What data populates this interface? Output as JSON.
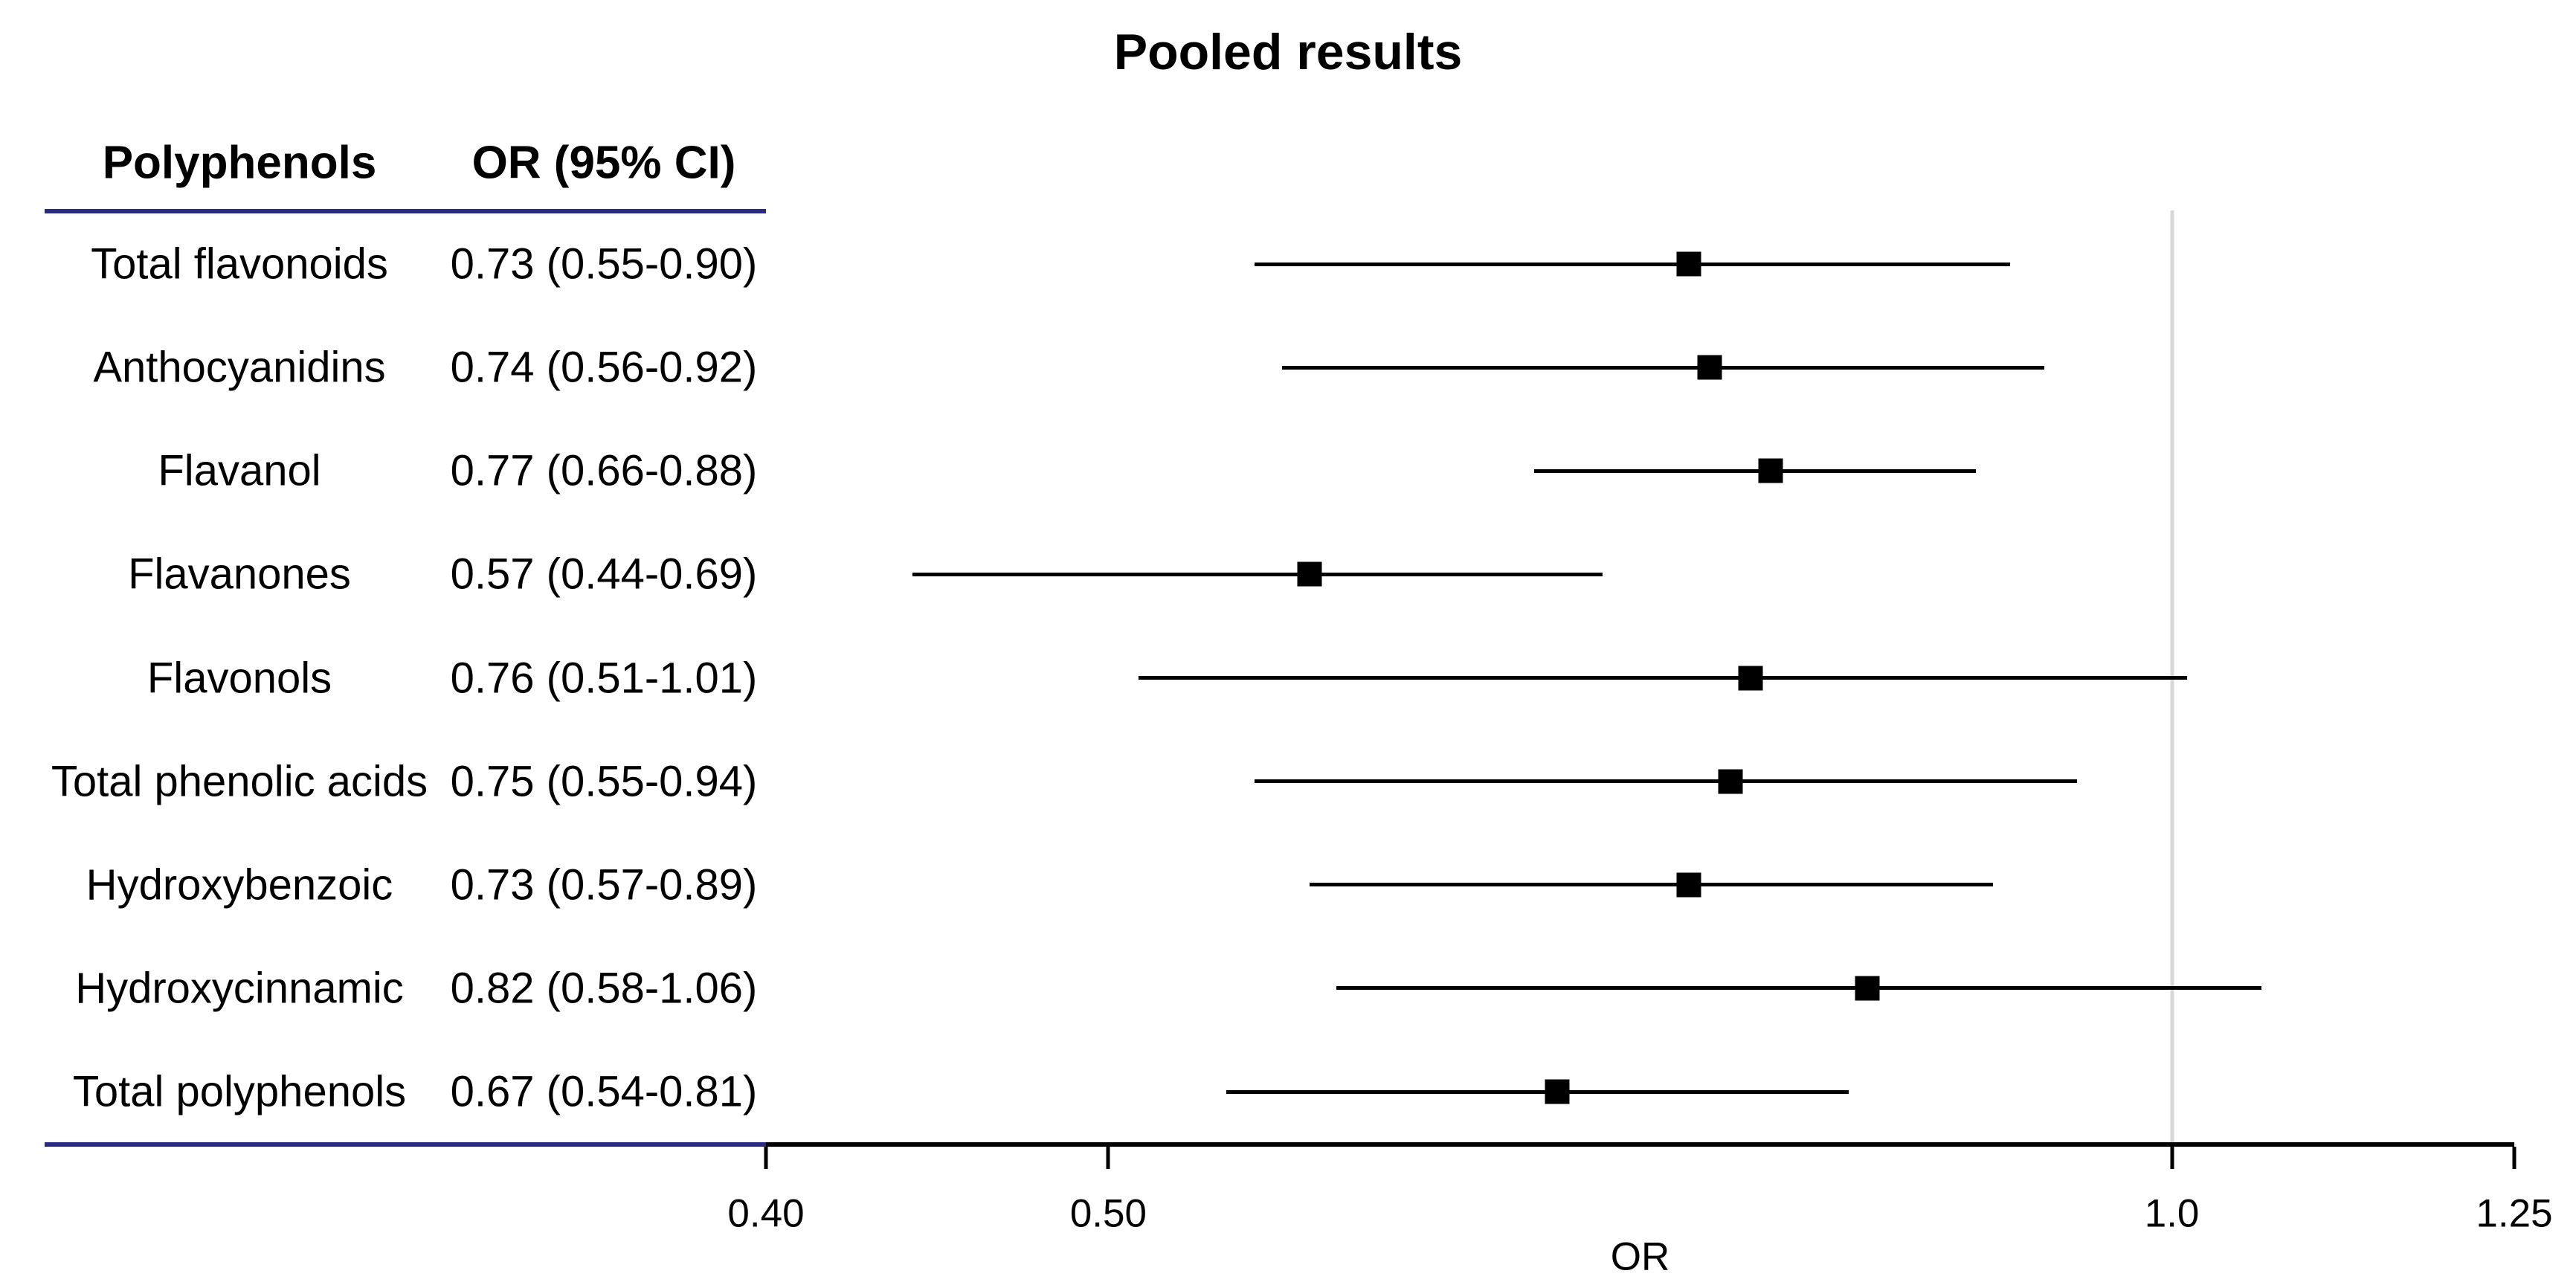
{
  "chart_data": {
    "type": "forest",
    "title": "Pooled results",
    "xlabel": "OR",
    "x_scale": "log",
    "xlim": [
      0.4,
      1.25
    ],
    "x_ticks": [
      0.4,
      0.5,
      1.0,
      1.25
    ],
    "x_tick_labels": [
      "0.40",
      "0.50",
      "1.0",
      "1.25"
    ],
    "ref_line": 1.0,
    "col_headers": [
      "Polyphenols",
      "OR (95% CI)"
    ],
    "rows": [
      {
        "label": "Total flavonoids",
        "or_ci": "0.73 (0.55-0.90)",
        "est": 0.73,
        "lo": 0.55,
        "hi": 0.9
      },
      {
        "label": "Anthocyanidins",
        "or_ci": "0.74 (0.56-0.92)",
        "est": 0.74,
        "lo": 0.56,
        "hi": 0.92
      },
      {
        "label": "Flavanol",
        "or_ci": "0.77 (0.66-0.88)",
        "est": 0.77,
        "lo": 0.66,
        "hi": 0.88
      },
      {
        "label": "Flavanones",
        "or_ci": "0.57 (0.44-0.69)",
        "est": 0.57,
        "lo": 0.44,
        "hi": 0.69
      },
      {
        "label": "Flavonols",
        "or_ci": "0.76 (0.51-1.01)",
        "est": 0.76,
        "lo": 0.51,
        "hi": 1.01
      },
      {
        "label": "Total phenolic acids",
        "or_ci": "0.75 (0.55-0.94)",
        "est": 0.75,
        "lo": 0.55,
        "hi": 0.94
      },
      {
        "label": "Hydroxybenzoic",
        "or_ci": "0.73 (0.57-0.89)",
        "est": 0.73,
        "lo": 0.57,
        "hi": 0.89
      },
      {
        "label": "Hydroxycinnamic",
        "or_ci": "0.82 (0.58-1.06)",
        "est": 0.82,
        "lo": 0.58,
        "hi": 1.06
      },
      {
        "label": "Total polyphenols",
        "or_ci": "0.67 (0.54-0.81)",
        "est": 0.67,
        "lo": 0.54,
        "hi": 0.81
      }
    ],
    "colors": {
      "marker": "#000000",
      "ci_line": "#000000",
      "axis": "#000000",
      "ref_line": "#d9d9d9",
      "separator": "#2b2a80",
      "text": "#000000",
      "background": "#ffffff"
    },
    "legend": "none",
    "grid": "off"
  }
}
